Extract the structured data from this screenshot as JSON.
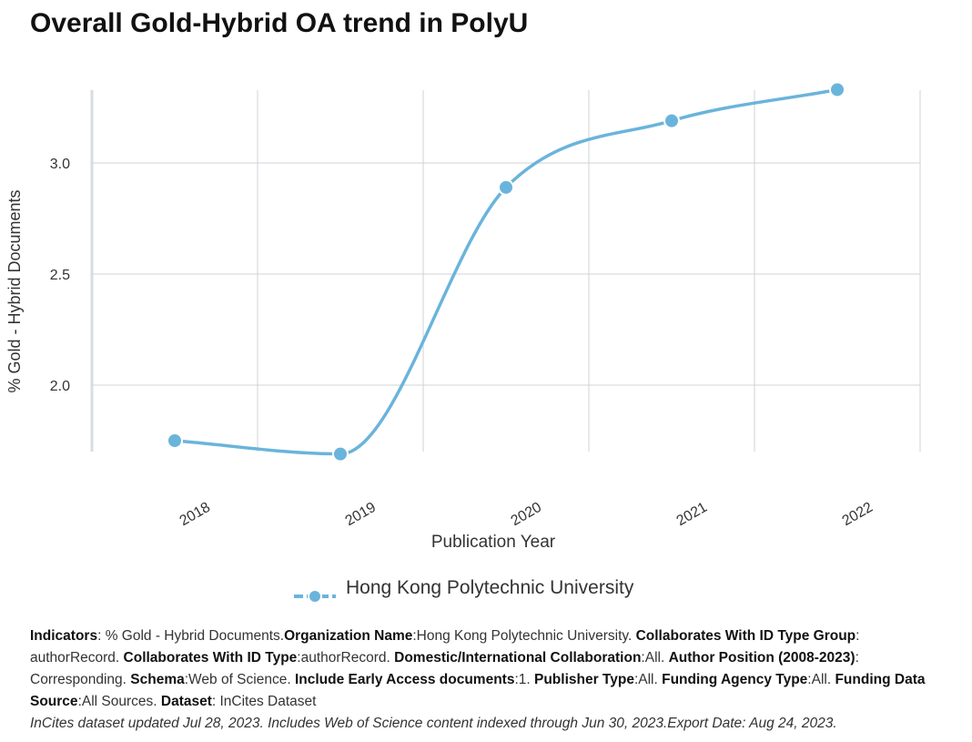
{
  "title": "Overall Gold-Hybrid OA trend in PolyU",
  "chart_data": {
    "type": "line",
    "x": [
      "2018",
      "2019",
      "2020",
      "2021",
      "2022"
    ],
    "series": [
      {
        "name": "Hong Kong Polytechnic University",
        "values": [
          1.75,
          1.69,
          2.89,
          3.19,
          3.33
        ],
        "color": "#6ab4db"
      }
    ],
    "ylabel": "% Gold - Hybrid Documents",
    "xlabel": "Publication Year",
    "yticks": [
      "2.0",
      "2.5",
      "3.0"
    ],
    "ytick_values": [
      2.0,
      2.5,
      3.0
    ],
    "ylim": [
      1.7,
      3.33
    ],
    "grid": true,
    "legend_position": "bottom-center"
  },
  "footer": {
    "parts": [
      {
        "label": "Indicators",
        "text": ": % Gold - Hybrid Documents."
      },
      {
        "label": "Organization Name",
        "text": ":Hong Kong Polytechnic University. "
      },
      {
        "label": "Collaborates With ID Type Group",
        "text": ": authorRecord. "
      },
      {
        "label": "Collaborates With ID Type",
        "text": ":authorRecord. "
      },
      {
        "label": "Domestic/International Collaboration",
        "text": ":All. "
      },
      {
        "label": "Author Position (2008-2023)",
        "text": ": Corresponding. "
      },
      {
        "label": "Schema",
        "text": ":Web of Science. "
      },
      {
        "label": "Include Early Access documents",
        "text": ":1. "
      },
      {
        "label": "Publisher Type",
        "text": ":All. "
      },
      {
        "label": "Funding Agency Type",
        "text": ":All. "
      },
      {
        "label": "Funding Data Source",
        "text": ":All Sources. "
      },
      {
        "label": "Dataset",
        "text": ": InCites Dataset"
      }
    ],
    "note": "InCites dataset updated Jul 28, 2023. Includes Web of Science content indexed through Jun 30, 2023.Export Date: Aug 24, 2023."
  }
}
